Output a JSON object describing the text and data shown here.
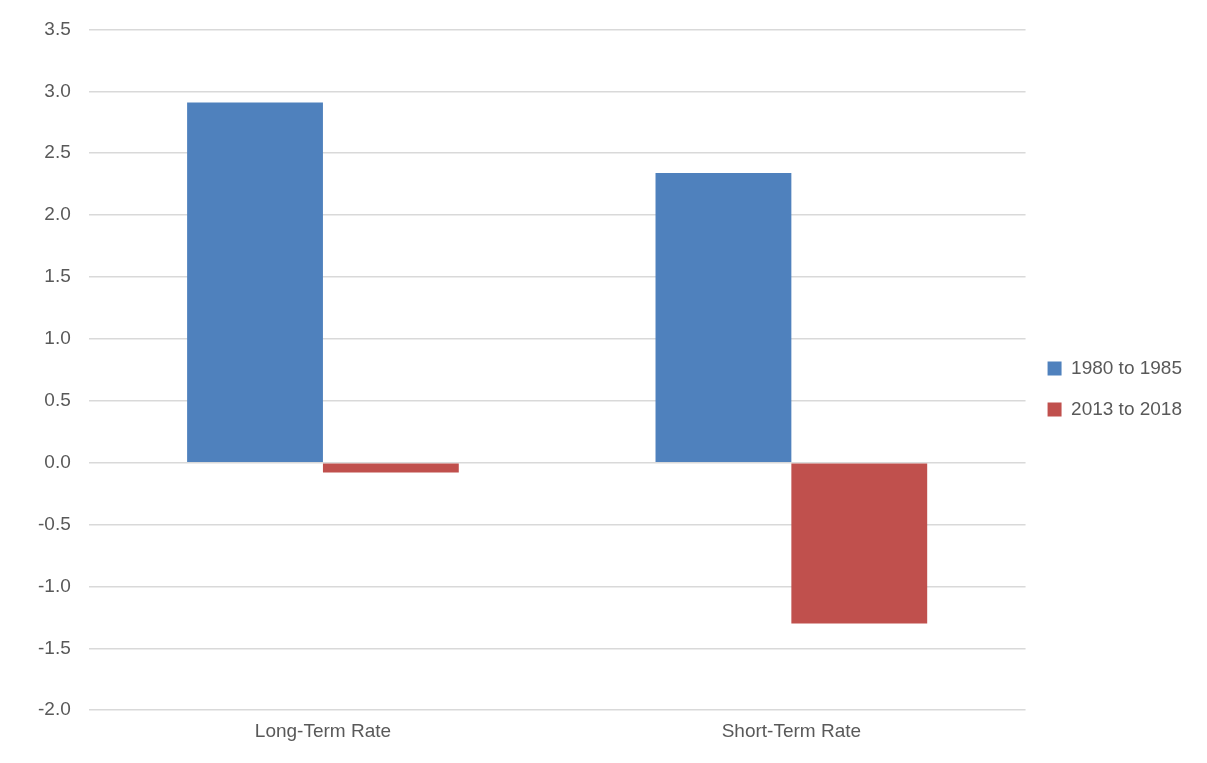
{
  "chart_data": {
    "type": "bar",
    "categories": [
      "Long-Term Rate",
      "Short-Term Rate"
    ],
    "series": [
      {
        "name": "1980 to 1985",
        "color": "#4f81bd",
        "values": [
          2.91,
          2.34
        ]
      },
      {
        "name": "2013 to 2018",
        "color": "#c0504d",
        "values": [
          -0.08,
          -1.3
        ]
      }
    ],
    "ylim": [
      -2.0,
      3.5
    ],
    "yticks": [
      {
        "value": -2.0,
        "label": "-2.0"
      },
      {
        "value": -1.5,
        "label": "-1.5"
      },
      {
        "value": -1.0,
        "label": "-1.0"
      },
      {
        "value": -0.5,
        "label": "-0.5"
      },
      {
        "value": 0,
        "label": "0.0"
      },
      {
        "value": 0.5,
        "label": "0.5"
      },
      {
        "value": 1.0,
        "label": "1.0"
      },
      {
        "value": 1.5,
        "label": "1.5"
      },
      {
        "value": 2.0,
        "label": "2.0"
      },
      {
        "value": 2.5,
        "label": "2.5"
      },
      {
        "value": 3.0,
        "label": "3.0"
      },
      {
        "value": 3.5,
        "label": "3.5"
      }
    ],
    "grid": "y",
    "legend": "right"
  }
}
